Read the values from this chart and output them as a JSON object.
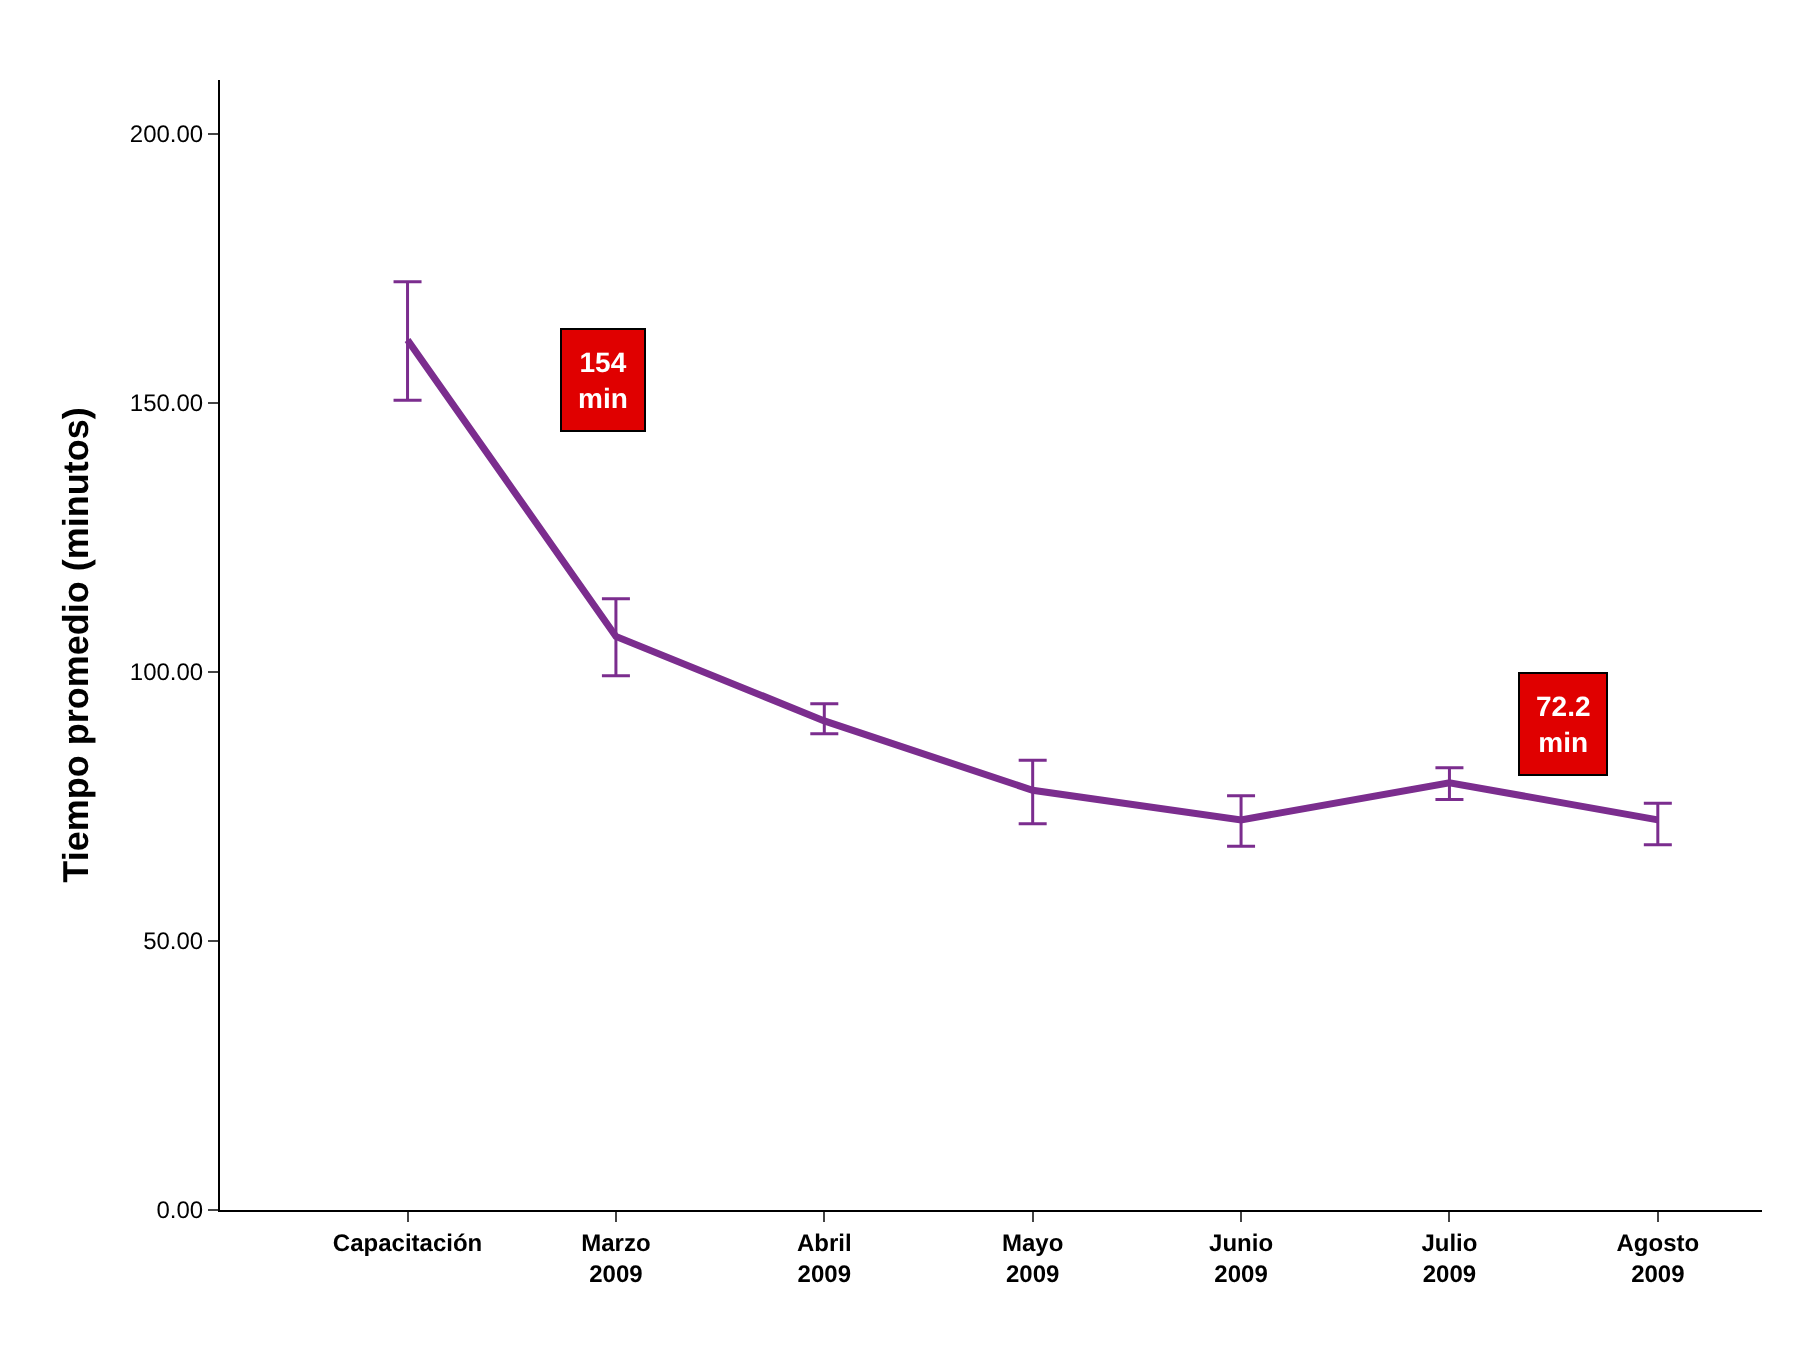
{
  "chart_data": {
    "type": "line",
    "ylabel": "Tiempo promedio (minutos)",
    "categories": [
      "Capacitación",
      "Marzo\n2009",
      "Abril\n2009",
      "Mayo\n2009",
      "Junio\n2009",
      "Julio\n2009",
      "Agosto\n2009"
    ],
    "series": [
      {
        "color": "#7b2d8e",
        "values": [
          161.7,
          106.6,
          90.9,
          78.0,
          72.5,
          79.4,
          72.5
        ],
        "errors": [
          [
            150.5,
            172.5
          ],
          [
            99.3,
            113.6
          ],
          [
            88.5,
            94.1
          ],
          [
            71.8,
            83.6
          ],
          [
            67.6,
            77.0
          ],
          [
            76.3,
            82.2
          ],
          [
            67.9,
            75.6
          ]
        ]
      }
    ],
    "ylim": [
      0,
      210
    ],
    "yticks": [
      {
        "value": 0,
        "label": "0.00"
      },
      {
        "value": 50,
        "label": "50.00"
      },
      {
        "value": 100,
        "label": "100.00"
      },
      {
        "value": 150,
        "label": "150.00"
      },
      {
        "value": 200,
        "label": "200.00"
      }
    ],
    "annotations": [
      "154\nmin",
      "72.2\nmin"
    ],
    "legend": false,
    "marker": "none",
    "line_style": "solid"
  }
}
